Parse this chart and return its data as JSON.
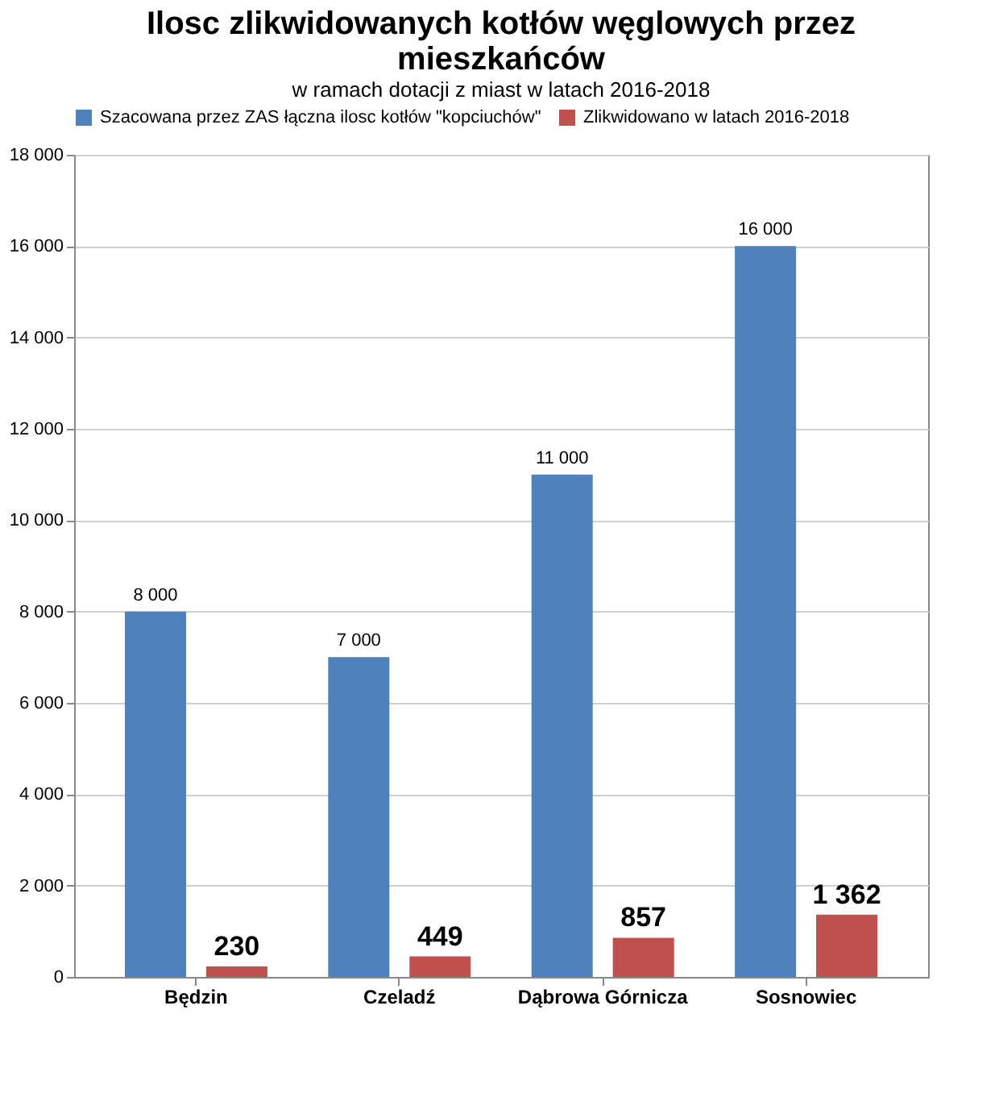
{
  "chart_data": {
    "type": "bar",
    "title": "Ilosc zlikwidowanych kotłów węglowych przez mieszkańców",
    "subtitle": "w ramach dotacji z miast w latach 2016-2018",
    "categories": [
      "Będzin",
      "Czeladź",
      "Dąbrowa Górnicza",
      "Sosnowiec"
    ],
    "series": [
      {
        "name": "Szacowana przez ZAS łączna ilosc kotłów \"kopciuchów\"",
        "color": "#4f81bd",
        "values": [
          8000,
          7000,
          11000,
          16000
        ],
        "value_labels": [
          "8 000",
          "7 000",
          "11 000",
          "16 000"
        ]
      },
      {
        "name": "Zlikwidowano w latach 2016-2018",
        "color": "#c0504d",
        "values": [
          230,
          449,
          857,
          1362
        ],
        "value_labels": [
          "230",
          "449",
          "857",
          "1 362"
        ]
      }
    ],
    "ylim": [
      0,
      18000
    ],
    "yticks": [
      {
        "value": 0,
        "label": "0"
      },
      {
        "value": 2000,
        "label": "2 000"
      },
      {
        "value": 4000,
        "label": "4 000"
      },
      {
        "value": 6000,
        "label": "6 000"
      },
      {
        "value": 8000,
        "label": "8 000"
      },
      {
        "value": 10000,
        "label": "10 000"
      },
      {
        "value": 12000,
        "label": "12 000"
      },
      {
        "value": 14000,
        "label": "14 000"
      },
      {
        "value": 16000,
        "label": "16 000"
      },
      {
        "value": 18000,
        "label": "18 000"
      }
    ],
    "grid": "y",
    "legend": "top"
  }
}
